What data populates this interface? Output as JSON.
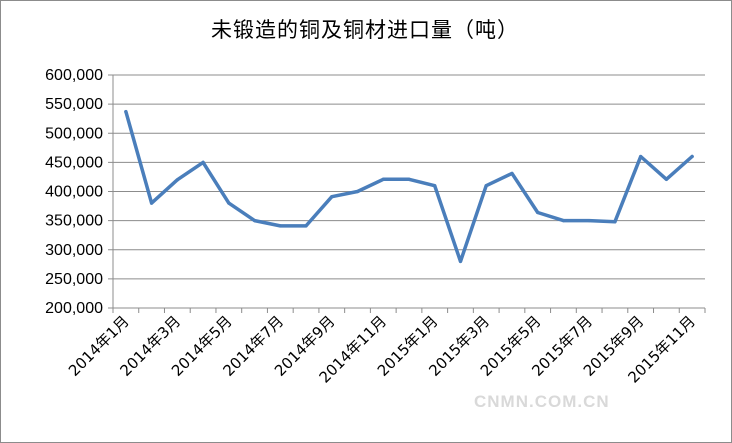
{
  "chart_data": {
    "type": "line",
    "title": "未锻造的铜及铜材进口量（吨）",
    "xlabel": "",
    "ylabel": "",
    "ylim": [
      200000,
      600000
    ],
    "yticks": [
      200000,
      250000,
      300000,
      350000,
      400000,
      450000,
      500000,
      550000,
      600000
    ],
    "ytick_labels": [
      "200,000",
      "250,000",
      "300,000",
      "350,000",
      "400,000",
      "450,000",
      "500,000",
      "550,000",
      "600,000"
    ],
    "categories": [
      "2014年1月",
      "2014年2月",
      "2014年3月",
      "2014年4月",
      "2014年5月",
      "2014年6月",
      "2014年7月",
      "2014年8月",
      "2014年9月",
      "2014年10月",
      "2014年11月",
      "2014年12月",
      "2015年1月",
      "2015年2月",
      "2015年3月",
      "2015年4月",
      "2015年5月",
      "2015年6月",
      "2015年7月",
      "2015年8月",
      "2015年9月",
      "2015年10月",
      "2015年11月"
    ],
    "xtick_labels": [
      "2014年1月",
      "2014年3月",
      "2014年5月",
      "2014年7月",
      "2014年9月",
      "2014年11月",
      "2015年1月",
      "2015年3月",
      "2015年5月",
      "2015年7月",
      "2015年9月",
      "2015年11月"
    ],
    "series": [
      {
        "values": [
          537000,
          380000,
          420000,
          450000,
          380000,
          350000,
          341000,
          341000,
          391000,
          400000,
          421000,
          421000,
          410000,
          280000,
          410000,
          431000,
          364000,
          350000,
          350000,
          348000,
          460000,
          421000,
          460000
        ],
        "color": "#4a7ebb"
      }
    ],
    "grid": true,
    "legend": "none"
  },
  "watermark": "CNMN.COM.CN"
}
